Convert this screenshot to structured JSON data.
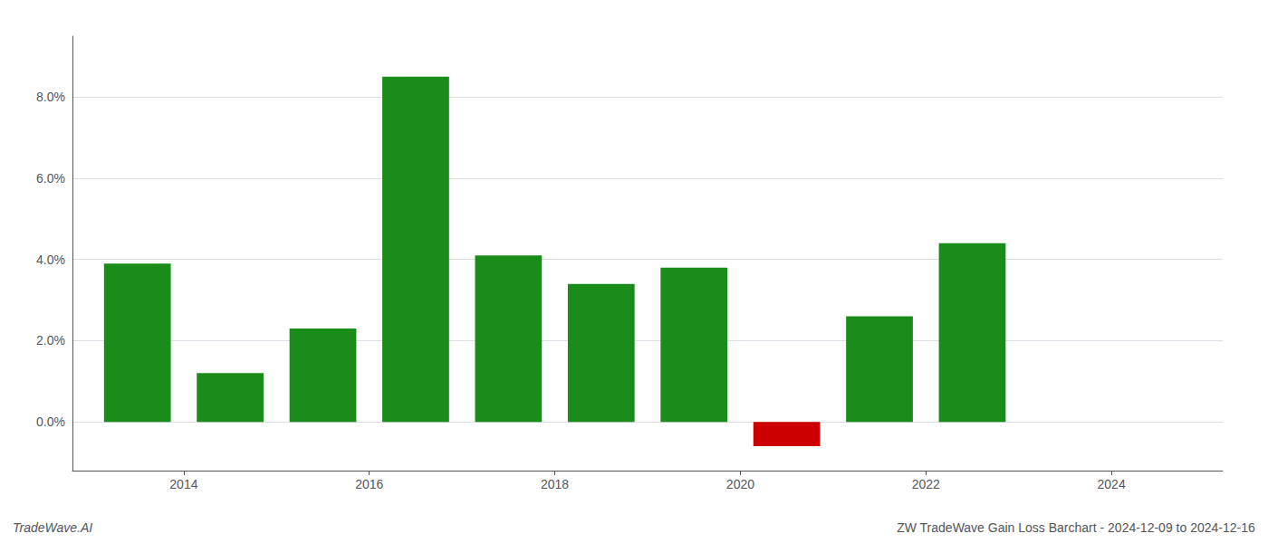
{
  "chart_data": {
    "type": "bar",
    "x": [
      2013.5,
      2014.5,
      2015.5,
      2016.5,
      2017.5,
      2018.5,
      2019.5,
      2020.5,
      2021.5,
      2022.5
    ],
    "values": [
      0.039,
      0.012,
      0.023,
      0.085,
      0.041,
      0.034,
      0.038,
      -0.006,
      0.026,
      0.044
    ],
    "colors": [
      "#1a8c1a",
      "#1a8c1a",
      "#1a8c1a",
      "#1a8c1a",
      "#1a8c1a",
      "#1a8c1a",
      "#1a8c1a",
      "#cc0000",
      "#1a8c1a",
      "#1a8c1a"
    ],
    "xlim": [
      2012.8,
      2025.2
    ],
    "xticks": [
      2014,
      2016,
      2018,
      2020,
      2022,
      2024
    ],
    "ylim": [
      -0.012,
      0.095
    ],
    "yticks": [
      {
        "value": 0.0,
        "label": "0.0%"
      },
      {
        "value": 0.02,
        "label": "2.0%"
      },
      {
        "value": 0.04,
        "label": "4.0%"
      },
      {
        "value": 0.06,
        "label": "6.0%"
      },
      {
        "value": 0.08,
        "label": "8.0%"
      }
    ],
    "grid": true,
    "annotations": [
      "TradeWave.AI",
      "ZW TradeWave Gain Loss Barchart - 2024-12-09 to 2024-12-16"
    ]
  }
}
